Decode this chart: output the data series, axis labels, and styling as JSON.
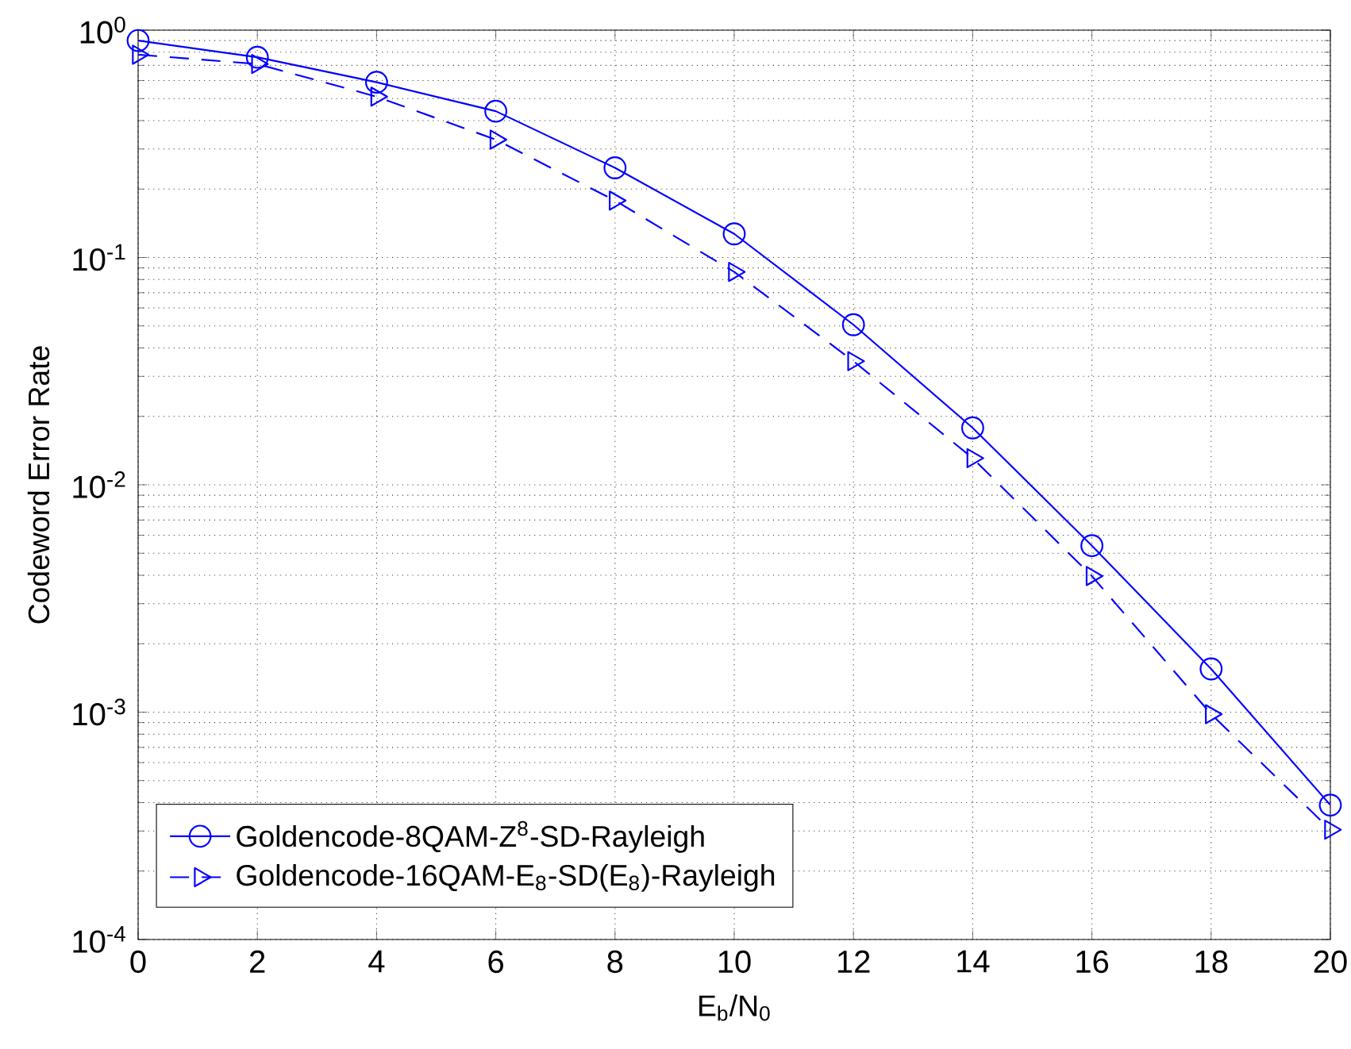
{
  "chart_data": {
    "type": "line",
    "xlabel": "E$_{b}$/N$_{0}$",
    "ylabel": "Codeword Error Rate",
    "x": [
      0,
      2,
      4,
      6,
      8,
      10,
      12,
      14,
      16,
      18,
      20
    ],
    "series": [
      {
        "name": "Goldencode-8QAM-Z$^{8}$-SD-Rayleigh",
        "color": "#0000ff",
        "marker": "circle",
        "line_style": "solid",
        "values": [
          0.9,
          0.76,
          0.59,
          0.44,
          0.248,
          0.127,
          0.0506,
          0.0178,
          0.0054,
          0.00155,
          0.00039
        ]
      },
      {
        "name": "Goldencode-16QAM-E$_{8}$-SD(E$_{8}$)-Rayleigh",
        "color": "#0000ff",
        "marker": "triangle",
        "line_style": "dashed",
        "values": [
          0.78,
          0.71,
          0.51,
          0.33,
          0.178,
          0.0864,
          0.035,
          0.0131,
          0.00397,
          0.00098,
          0.000304
        ]
      }
    ],
    "log": "y",
    "xlim": [
      0,
      20
    ],
    "xticks": [
      0,
      2,
      4,
      6,
      8,
      10,
      12,
      14,
      16,
      18,
      20
    ],
    "ylim": [
      0.0001,
      1
    ],
    "yticks": [
      {
        "value": 0.0001,
        "label": "10$^{-4}$"
      },
      {
        "value": 0.001,
        "label": "10$^{-3}$"
      },
      {
        "value": 0.01,
        "label": "10$^{-2}$"
      },
      {
        "value": 0.1,
        "label": "10$^{-1}$"
      },
      {
        "value": 1,
        "label": "10$^{0}$"
      }
    ],
    "grid": true,
    "legend": "bottom left"
  }
}
